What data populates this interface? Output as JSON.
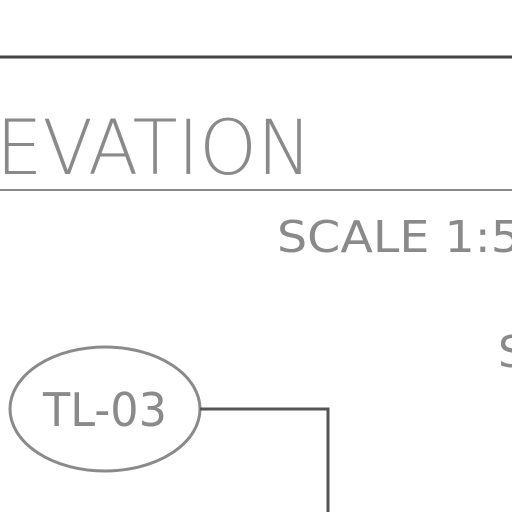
{
  "sheet": {
    "title_fragment": "EVATION",
    "scale_fragment": "SCALE 1:5",
    "side_note_fragment": "S"
  },
  "tag": {
    "label": "TL-03"
  },
  "colors": {
    "background": "#ffffff",
    "border_line": "#444444",
    "title_underline": "#8a8a8a",
    "text": "#8a8a8a",
    "leader_line": "#555555",
    "tag_outline": "#8a8a8a"
  }
}
